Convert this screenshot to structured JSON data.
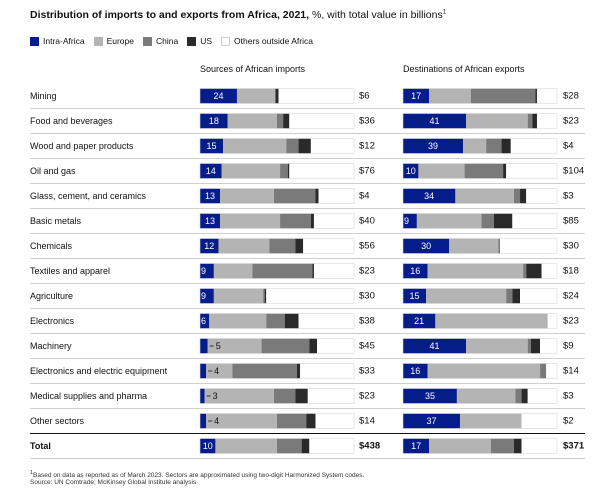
{
  "title": {
    "main": "Distribution of imports to and exports from Africa, 2021,",
    "sub": " %, with total value in billions",
    "note_mark": "1"
  },
  "legend": [
    {
      "label": "Intra-Africa",
      "color": "#051c8b"
    },
    {
      "label": "Europe",
      "color": "#b4b4b4"
    },
    {
      "label": "China",
      "color": "#7a7a7a"
    },
    {
      "label": "US",
      "color": "#2a2a2a"
    },
    {
      "label": "Others outside Africa",
      "color": "#ffffff"
    }
  ],
  "columns": {
    "imports_header": "Sources of African imports",
    "exports_header": "Destinations of African exports"
  },
  "footnotes": [
    "Based on data as reported as of March 2023. Sectors are approximated using two-digit Harmonized System codes.",
    "Source: UN Comtrade; McKinsey Global Institute analysis"
  ],
  "chart_data": {
    "type": "bar",
    "stacked": true,
    "orientation": "horizontal",
    "segments": [
      "Intra-Africa",
      "Europe",
      "China",
      "US",
      "Others outside Africa"
    ],
    "categories": [
      "Mining",
      "Food and beverages",
      "Wood and paper products",
      "Oil and gas",
      "Glass, cement, and ceramics",
      "Basic metals",
      "Chemicals",
      "Textiles and apparel",
      "Agriculture",
      "Electronics",
      "Machinery",
      "Electronics and electric equipment",
      "Medical supplies and pharma",
      "Other sectors",
      "Total"
    ],
    "imports": [
      {
        "intra": 24,
        "intra_label": "24",
        "europe": 25,
        "china": 0,
        "us": 2,
        "others": 49,
        "total": "$6"
      },
      {
        "intra": 18,
        "intra_label": "18",
        "europe": 32,
        "china": 4,
        "us": 4,
        "others": 42,
        "total": "$36"
      },
      {
        "intra": 15,
        "intra_label": "15",
        "europe": 41,
        "china": 8,
        "us": 8,
        "others": 28,
        "total": "$12"
      },
      {
        "intra": 14,
        "intra_label": "14",
        "europe": 38,
        "china": 5,
        "us": 1,
        "others": 42,
        "total": "$76"
      },
      {
        "intra": 13,
        "intra_label": "13",
        "europe": 35,
        "china": 27,
        "us": 2,
        "others": 23,
        "total": "$4"
      },
      {
        "intra": 13,
        "intra_label": "13",
        "europe": 39,
        "china": 20,
        "us": 2,
        "others": 26,
        "total": "$40"
      },
      {
        "intra": 12,
        "intra_label": "12",
        "europe": 33,
        "china": 17,
        "us": 5,
        "others": 33,
        "total": "$56"
      },
      {
        "intra": 9,
        "intra_label": "9",
        "europe": 25,
        "china": 39,
        "us": 1,
        "others": 26,
        "total": "$23"
      },
      {
        "intra": 9,
        "intra_label": "9",
        "europe": 32,
        "china": 1,
        "us": 1,
        "others": 57,
        "total": "$30"
      },
      {
        "intra": 6,
        "intra_label": "6",
        "europe": 37,
        "china": 12,
        "us": 9,
        "others": 36,
        "total": "$38"
      },
      {
        "intra": 5,
        "intra_label": "5",
        "europe": 35,
        "china": 31,
        "us": 5,
        "others": 24,
        "total": "$45"
      },
      {
        "intra": 4,
        "intra_label": "4",
        "europe": 17,
        "china": 42,
        "us": 2,
        "others": 35,
        "total": "$33"
      },
      {
        "intra": 3,
        "intra_label": "3",
        "europe": 45,
        "china": 14,
        "us": 8,
        "others": 30,
        "total": "$23"
      },
      {
        "intra": 4,
        "intra_label": "4",
        "europe": 46,
        "china": 19,
        "us": 6,
        "others": 25,
        "total": "$14"
      },
      {
        "intra": 10,
        "intra_label": "10",
        "europe": 40,
        "china": 16,
        "us": 5,
        "others": 29,
        "total": "$438"
      }
    ],
    "exports": [
      {
        "intra": 17,
        "intra_label": "17",
        "europe": 27,
        "china": 42,
        "us": 1,
        "others": 13,
        "total": "$28"
      },
      {
        "intra": 41,
        "intra_label": "41",
        "europe": 40,
        "china": 3,
        "us": 3,
        "others": 13,
        "total": "$23"
      },
      {
        "intra": 39,
        "intra_label": "39",
        "europe": 15,
        "china": 10,
        "us": 6,
        "others": 30,
        "total": "$4"
      },
      {
        "intra": 10,
        "intra_label": "10",
        "europe": 30,
        "china": 25,
        "us": 2,
        "others": 33,
        "total": "$104"
      },
      {
        "intra": 34,
        "intra_label": "34",
        "europe": 38,
        "china": 4,
        "us": 4,
        "others": 20,
        "total": "$3"
      },
      {
        "intra": 9,
        "intra_label": "9",
        "europe": 42,
        "china": 8,
        "us": 12,
        "others": 29,
        "total": "$85"
      },
      {
        "intra": 30,
        "intra_label": "30",
        "europe": 32,
        "china": 1,
        "us": 0,
        "others": 37,
        "total": "$30"
      },
      {
        "intra": 16,
        "intra_label": "16",
        "europe": 62,
        "china": 2,
        "us": 10,
        "others": 10,
        "total": "$18"
      },
      {
        "intra": 15,
        "intra_label": "15",
        "europe": 52,
        "china": 4,
        "us": 5,
        "others": 24,
        "total": "$24"
      },
      {
        "intra": 21,
        "intra_label": "21",
        "europe": 73,
        "china": 0,
        "us": 0,
        "others": 6,
        "total": "$23"
      },
      {
        "intra": 41,
        "intra_label": "41",
        "europe": 40,
        "china": 2,
        "us": 6,
        "others": 11,
        "total": "$9"
      },
      {
        "intra": 16,
        "intra_label": "16",
        "europe": 73,
        "china": 4,
        "us": 0,
        "others": 7,
        "total": "$14"
      },
      {
        "intra": 35,
        "intra_label": "35",
        "europe": 38,
        "china": 4,
        "us": 4,
        "others": 19,
        "total": "$3"
      },
      {
        "intra": 37,
        "intra_label": "37",
        "europe": 40,
        "china": 0,
        "us": 0,
        "others": 23,
        "total": "$2"
      },
      {
        "intra": 17,
        "intra_label": "17",
        "europe": 40,
        "china": 15,
        "us": 5,
        "others": 23,
        "total": "$371"
      }
    ]
  }
}
